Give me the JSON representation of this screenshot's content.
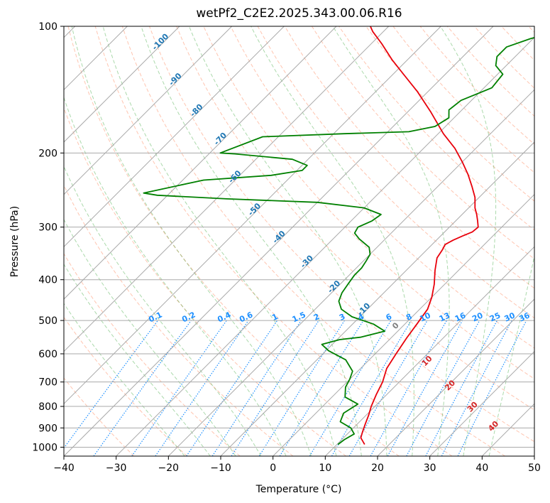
{
  "chart_data": {
    "type": "line",
    "title": "wetPf2_C2E2.2025.343.00.06.R16",
    "xlabel": "Temperature (°C)",
    "ylabel": "Pressure (hPa)",
    "xlim": [
      -40,
      50
    ],
    "ylim": [
      1050,
      100
    ],
    "y_scale": "log",
    "x_ticks": [
      -40,
      -30,
      -20,
      -10,
      0,
      10,
      20,
      30,
      40,
      50
    ],
    "x_tick_labels": [
      "−40",
      "−30",
      "−20",
      "−10",
      "0",
      "10",
      "20",
      "30",
      "40",
      "50"
    ],
    "y_ticks": [
      100,
      200,
      300,
      400,
      500,
      600,
      700,
      800,
      900,
      1000
    ],
    "y_tick_labels": [
      "100",
      "200",
      "300",
      "400",
      "500",
      "600",
      "700",
      "800",
      "900",
      "1000"
    ],
    "grid": true,
    "skew": true,
    "colors": {
      "temperature": "#e8000b",
      "dewpoint": "#008000",
      "mixing_ratio": "#1e90ff",
      "isotherm_label": "#1f77b4",
      "dry_adiabat": "#ff7f50",
      "moist_adiabat": "#2ca02c",
      "grid": "#aaaaaa",
      "saturated_wetbulb_label": "#d62728",
      "zero_label": "#808080"
    },
    "series": [
      {
        "key": "temperature",
        "points": [
          [
            15.3,
            985
          ],
          [
            13.3,
            950
          ],
          [
            12.5,
            920
          ],
          [
            11.5,
            880
          ],
          [
            10.5,
            840
          ],
          [
            9.3,
            800
          ],
          [
            8.0,
            750
          ],
          [
            6.8,
            700
          ],
          [
            5.0,
            650
          ],
          [
            4.0,
            600
          ],
          [
            3.0,
            550
          ],
          [
            2.3,
            510
          ],
          [
            1.5,
            470
          ],
          [
            0.0,
            440
          ],
          [
            -2.0,
            410
          ],
          [
            -4.5,
            380
          ],
          [
            -6.5,
            355
          ],
          [
            -7.0,
            340
          ],
          [
            -7.5,
            330
          ],
          [
            -6.8,
            322
          ],
          [
            -5.8,
            315
          ],
          [
            -4.7,
            308
          ],
          [
            -4.5,
            300
          ],
          [
            -5.8,
            290
          ],
          [
            -7.2,
            280
          ],
          [
            -8.8,
            270
          ],
          [
            -10.8,
            255
          ],
          [
            -13.5,
            240
          ],
          [
            -16.5,
            225
          ],
          [
            -20.0,
            210
          ],
          [
            -24.0,
            195
          ],
          [
            -29.0,
            180
          ],
          [
            -35.5,
            160
          ],
          [
            -42.0,
            143
          ],
          [
            -48.0,
            130
          ],
          [
            -53.0,
            120
          ],
          [
            -58.0,
            110
          ],
          [
            -62.0,
            103
          ],
          [
            -63.5,
            100
          ]
        ]
      },
      {
        "key": "dewpoint",
        "points": [
          [
            10.2,
            985
          ],
          [
            10.5,
            960
          ],
          [
            11.3,
            930
          ],
          [
            9.5,
            900
          ],
          [
            6.3,
            870
          ],
          [
            5.3,
            830
          ],
          [
            6.3,
            790
          ],
          [
            2.5,
            760
          ],
          [
            0.7,
            720
          ],
          [
            0.0,
            690
          ],
          [
            -1.0,
            660
          ],
          [
            -4.5,
            620
          ],
          [
            -9.5,
            590
          ],
          [
            -12.0,
            570
          ],
          [
            -9.5,
            555
          ],
          [
            -6.0,
            548
          ],
          [
            -2.5,
            530
          ],
          [
            -6.0,
            510
          ],
          [
            -11.5,
            490
          ],
          [
            -15.0,
            470
          ],
          [
            -17.0,
            450
          ],
          [
            -18.0,
            430
          ],
          [
            -18.5,
            410
          ],
          [
            -19.0,
            390
          ],
          [
            -19.0,
            375
          ],
          [
            -19.5,
            360
          ],
          [
            -20.0,
            348
          ],
          [
            -21.5,
            335
          ],
          [
            -25.0,
            320
          ],
          [
            -27.0,
            310
          ],
          [
            -27.5,
            300
          ],
          [
            -26.0,
            290
          ],
          [
            -25.5,
            280
          ],
          [
            -30.0,
            270
          ],
          [
            -40.0,
            262
          ],
          [
            -58.0,
            257
          ],
          [
            -72.0,
            252
          ],
          [
            -75.0,
            249
          ],
          [
            -66.0,
            232
          ],
          [
            -54.0,
            226
          ],
          [
            -49.0,
            220
          ],
          [
            -49.0,
            214
          ],
          [
            -53.0,
            207
          ],
          [
            -65.0,
            201
          ],
          [
            -68.0,
            200
          ],
          [
            -63.0,
            183
          ],
          [
            -48.0,
            180
          ],
          [
            -36.0,
            178
          ],
          [
            -32.0,
            173
          ],
          [
            -31.0,
            165
          ],
          [
            -32.5,
            158
          ],
          [
            -32.0,
            150
          ],
          [
            -28.5,
            140
          ],
          [
            -29.0,
            130
          ],
          [
            -32.0,
            124
          ],
          [
            -33.5,
            118
          ],
          [
            -33.5,
            112
          ],
          [
            -30.5,
            107
          ],
          [
            -27.0,
            103
          ],
          [
            -24.5,
            100
          ]
        ]
      }
    ],
    "isotherm_labels": [
      "-100",
      "-90",
      "-80",
      "-70",
      "-60",
      "-50",
      "-40",
      "-30",
      "-20",
      "-10"
    ],
    "mixing_ratio_labels": [
      "0.1",
      "0.2",
      "0.4",
      "0.6",
      "1",
      "1.5",
      "2",
      "3",
      "4",
      "6",
      "8",
      "10",
      "13",
      "16",
      "20",
      "25",
      "30",
      "36"
    ],
    "mixing_ratio_values": [
      0.1,
      0.2,
      0.4,
      0.6,
      1,
      1.5,
      2,
      3,
      4,
      6,
      8,
      10,
      13,
      16,
      20,
      25,
      30,
      36
    ],
    "wetbulb_labels": [
      "0",
      "10",
      "20",
      "30",
      "40"
    ]
  }
}
